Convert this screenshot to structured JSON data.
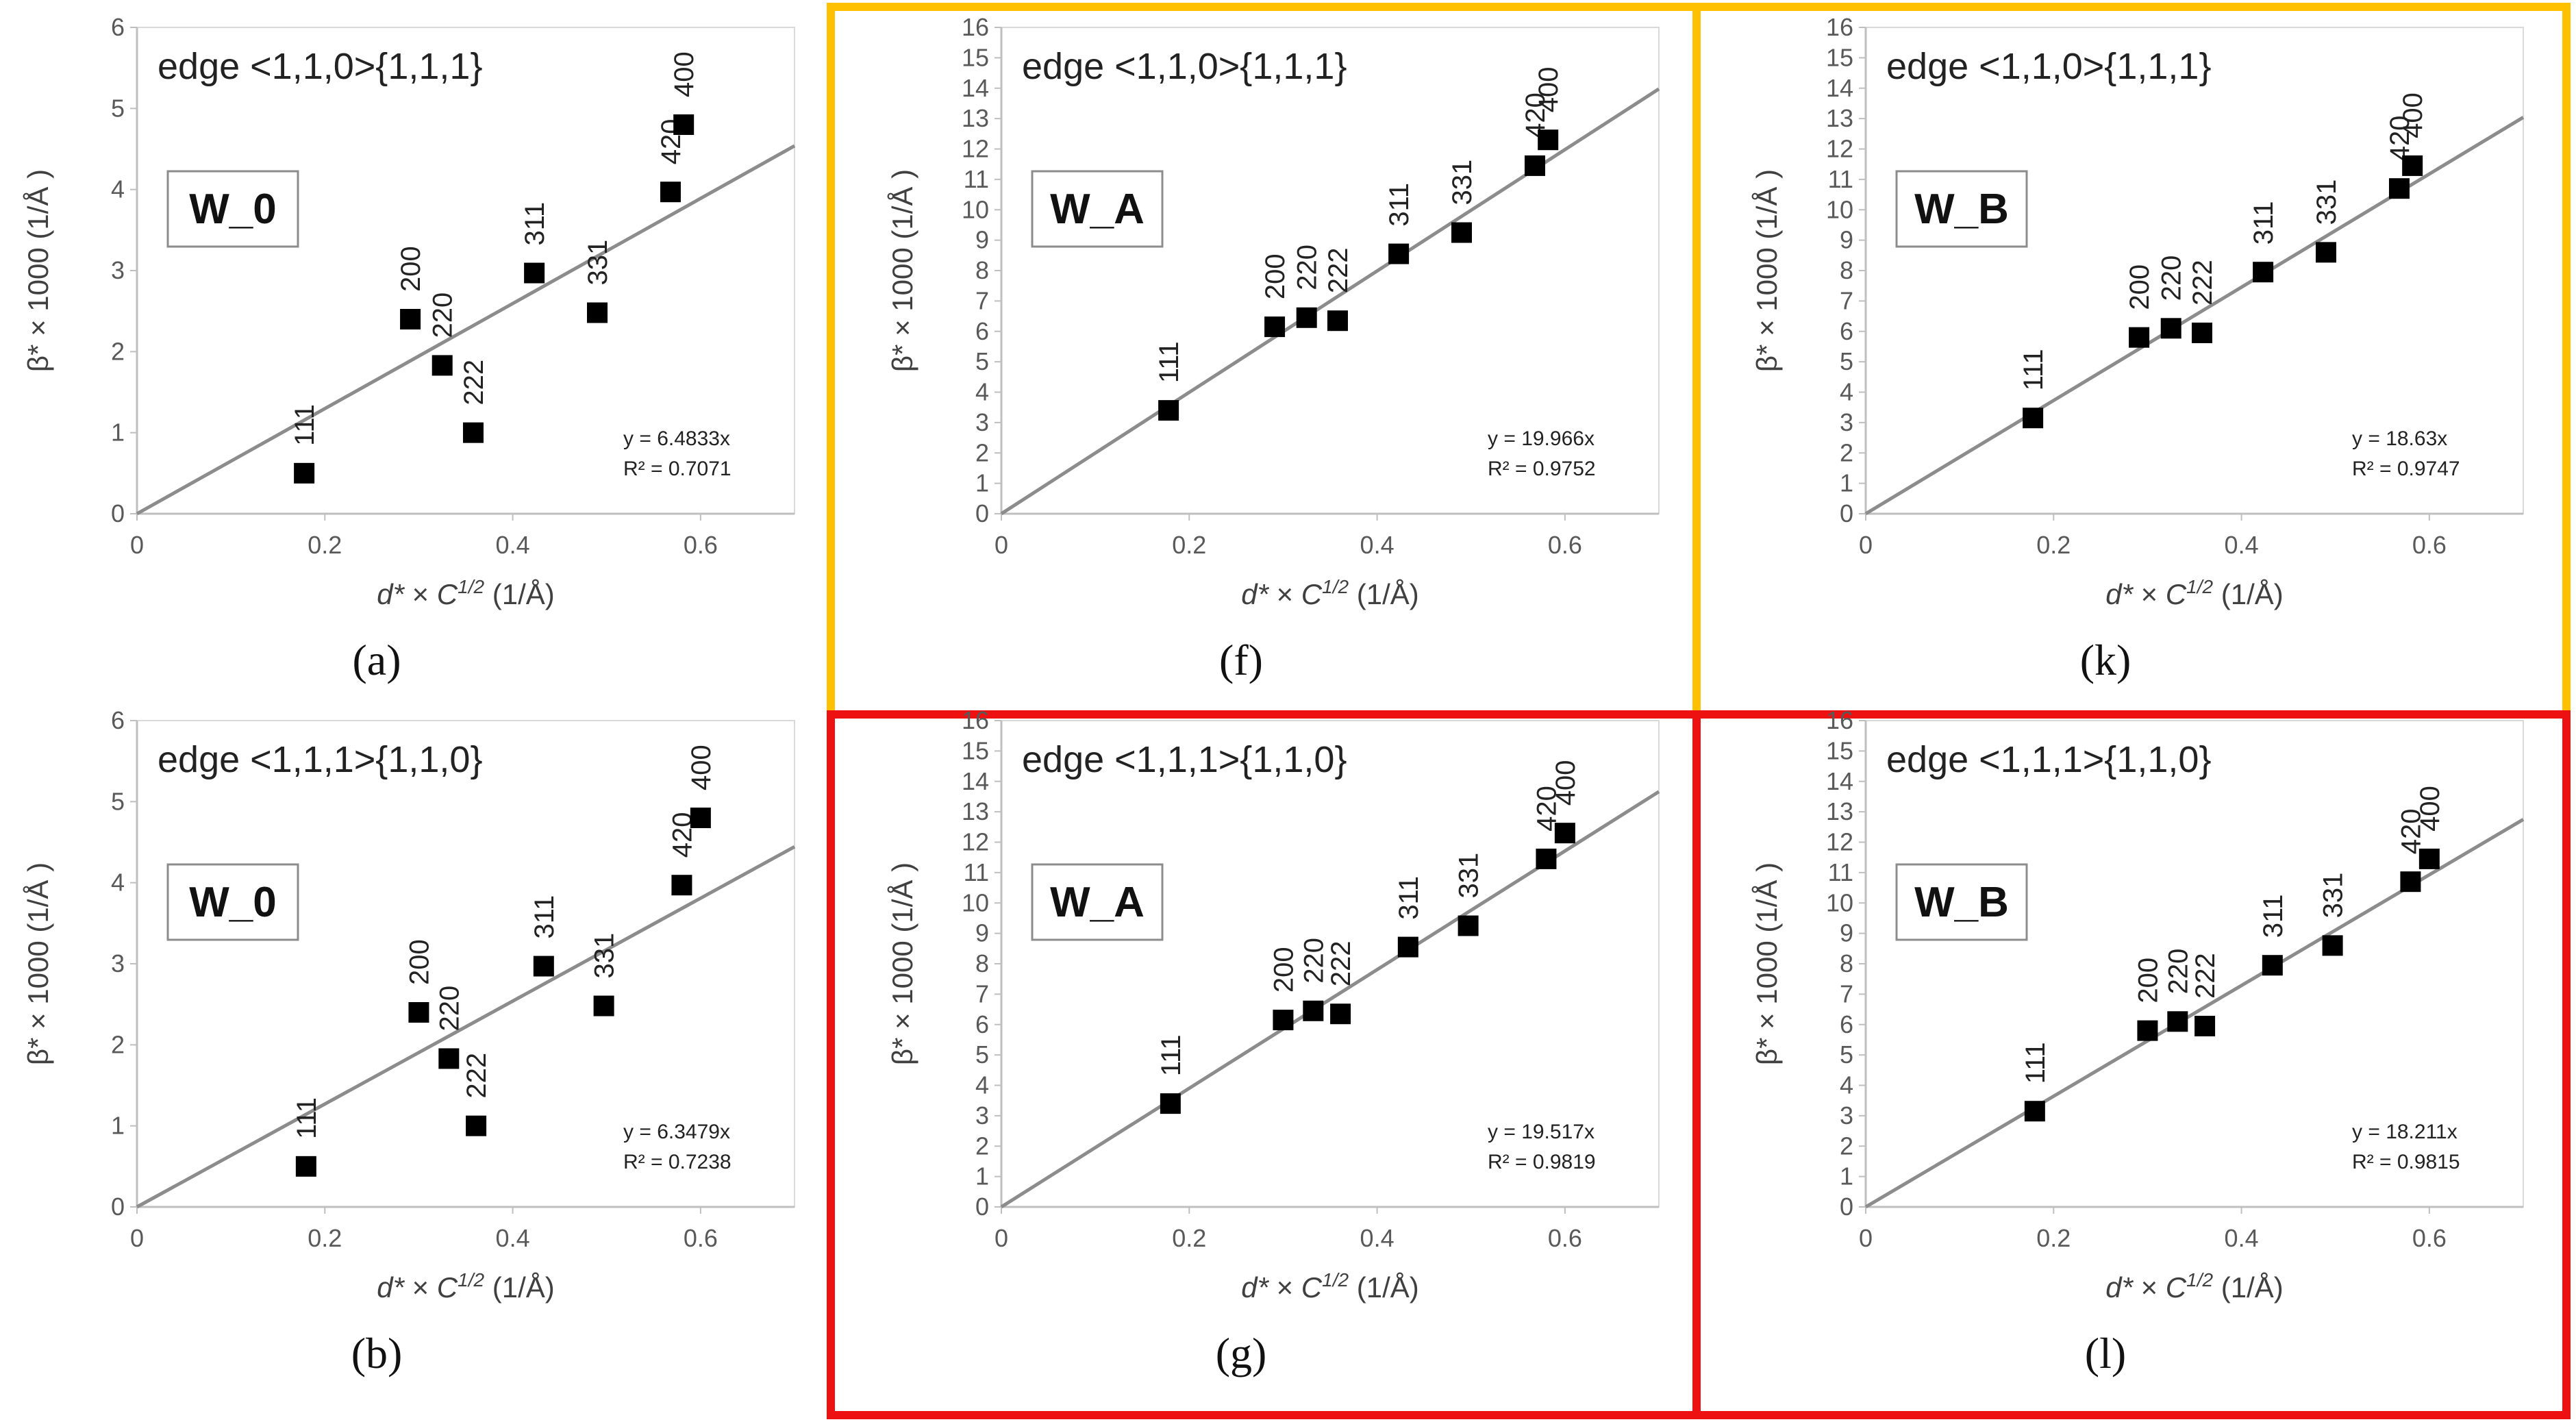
{
  "axis_common": {
    "xlabel_parts": [
      "d*",
      " × ",
      "C",
      "1/2",
      "    (1/Å)"
    ],
    "ylabel": "β* × 1000   (1/Å )"
  },
  "frame_colors": {
    "orange": "#FFC000",
    "red": "#EE1111"
  },
  "chart_data": [
    {
      "type": "scatter",
      "caption": "(a)",
      "title": "edge <1,1,0>{1,1,1}",
      "sample": "W_0",
      "eq_line1": "y = 6.4833x",
      "eq_line2": "R² = 0.7071",
      "slope": 6.4833,
      "xlim": [
        0,
        0.7
      ],
      "ylim": [
        0,
        6
      ],
      "xticks": [
        0,
        0.2,
        0.4,
        0.6
      ],
      "xtick_labels": [
        "0",
        "0.2",
        "0.4",
        "0.6"
      ],
      "yticks": [
        0,
        1,
        2,
        3,
        4,
        5,
        6
      ],
      "points": [
        {
          "label": "111",
          "x": 0.178,
          "y": 0.5
        },
        {
          "label": "200",
          "x": 0.291,
          "y": 2.4
        },
        {
          "label": "220",
          "x": 0.325,
          "y": 1.83
        },
        {
          "label": "222",
          "x": 0.358,
          "y": 1.0
        },
        {
          "label": "311",
          "x": 0.423,
          "y": 2.97
        },
        {
          "label": "331",
          "x": 0.49,
          "y": 2.48
        },
        {
          "label": "420",
          "x": 0.568,
          "y": 3.97
        },
        {
          "label": "400",
          "x": 0.582,
          "y": 4.8
        }
      ]
    },
    {
      "type": "scatter",
      "caption": "(b)",
      "title": "edge <1,1,1>{1,1,0}",
      "sample": "W_0",
      "eq_line1": "y = 6.3479x",
      "eq_line2": "R² = 0.7238",
      "slope": 6.3479,
      "xlim": [
        0,
        0.7
      ],
      "ylim": [
        0,
        6
      ],
      "xticks": [
        0,
        0.2,
        0.4,
        0.6
      ],
      "xtick_labels": [
        "0",
        "0.2",
        "0.4",
        "0.6"
      ],
      "yticks": [
        0,
        1,
        2,
        3,
        4,
        5,
        6
      ],
      "points": [
        {
          "label": "111",
          "x": 0.18,
          "y": 0.5
        },
        {
          "label": "200",
          "x": 0.3,
          "y": 2.4
        },
        {
          "label": "220",
          "x": 0.332,
          "y": 1.83
        },
        {
          "label": "222",
          "x": 0.361,
          "y": 1.0
        },
        {
          "label": "311",
          "x": 0.433,
          "y": 2.97
        },
        {
          "label": "331",
          "x": 0.497,
          "y": 2.48
        },
        {
          "label": "420",
          "x": 0.58,
          "y": 3.97
        },
        {
          "label": "400",
          "x": 0.6,
          "y": 4.8
        }
      ]
    },
    {
      "type": "scatter",
      "caption": "(f)",
      "title": "edge <1,1,0>{1,1,1}",
      "sample": "W_A",
      "eq_line1": "y = 19.966x",
      "eq_line2": "R² = 0.9752",
      "slope": 19.966,
      "xlim": [
        0,
        0.7
      ],
      "ylim": [
        0,
        16
      ],
      "xticks": [
        0,
        0.2,
        0.4,
        0.6
      ],
      "xtick_labels": [
        "0",
        "0.2",
        "0.4",
        "0.6"
      ],
      "yticks": [
        0,
        1,
        2,
        3,
        4,
        5,
        6,
        7,
        8,
        9,
        10,
        11,
        12,
        13,
        14,
        15,
        16
      ],
      "points": [
        {
          "label": "111",
          "x": 0.178,
          "y": 3.4
        },
        {
          "label": "200",
          "x": 0.291,
          "y": 6.15
        },
        {
          "label": "220",
          "x": 0.325,
          "y": 6.45
        },
        {
          "label": "222",
          "x": 0.358,
          "y": 6.35
        },
        {
          "label": "311",
          "x": 0.423,
          "y": 8.55
        },
        {
          "label": "331",
          "x": 0.49,
          "y": 9.25
        },
        {
          "label": "420",
          "x": 0.568,
          "y": 11.45
        },
        {
          "label": "400",
          "x": 0.582,
          "y": 12.3
        }
      ]
    },
    {
      "type": "scatter",
      "caption": "(g)",
      "title": "edge <1,1,1>{1,1,0}",
      "sample": "W_A",
      "eq_line1": "y = 19.517x",
      "eq_line2": "R² = 0.9819",
      "slope": 19.517,
      "xlim": [
        0,
        0.7
      ],
      "ylim": [
        0,
        16
      ],
      "xticks": [
        0,
        0.2,
        0.4,
        0.6
      ],
      "xtick_labels": [
        "0",
        "0.2",
        "0.4",
        "0.6"
      ],
      "yticks": [
        0,
        1,
        2,
        3,
        4,
        5,
        6,
        7,
        8,
        9,
        10,
        11,
        12,
        13,
        14,
        15,
        16
      ],
      "points": [
        {
          "label": "111",
          "x": 0.18,
          "y": 3.4
        },
        {
          "label": "200",
          "x": 0.3,
          "y": 6.15
        },
        {
          "label": "220",
          "x": 0.332,
          "y": 6.45
        },
        {
          "label": "222",
          "x": 0.361,
          "y": 6.35
        },
        {
          "label": "311",
          "x": 0.433,
          "y": 8.55
        },
        {
          "label": "331",
          "x": 0.497,
          "y": 9.25
        },
        {
          "label": "420",
          "x": 0.58,
          "y": 11.45
        },
        {
          "label": "400",
          "x": 0.6,
          "y": 12.3
        }
      ]
    },
    {
      "type": "scatter",
      "caption": "(k)",
      "title": "edge <1,1,0>{1,1,1}",
      "sample": "W_B",
      "eq_line1": "y = 18.63x",
      "eq_line2": "R² = 0.9747",
      "slope": 18.63,
      "xlim": [
        0,
        0.7
      ],
      "ylim": [
        0,
        16
      ],
      "xticks": [
        0,
        0.2,
        0.4,
        0.6
      ],
      "xtick_labels": [
        "0",
        "0.2",
        "0.4",
        "0.6"
      ],
      "yticks": [
        0,
        1,
        2,
        3,
        4,
        5,
        6,
        7,
        8,
        9,
        10,
        11,
        12,
        13,
        14,
        15,
        16
      ],
      "points": [
        {
          "label": "111",
          "x": 0.178,
          "y": 3.15
        },
        {
          "label": "200",
          "x": 0.291,
          "y": 5.8
        },
        {
          "label": "220",
          "x": 0.325,
          "y": 6.1
        },
        {
          "label": "222",
          "x": 0.358,
          "y": 5.95
        },
        {
          "label": "311",
          "x": 0.423,
          "y": 7.95
        },
        {
          "label": "331",
          "x": 0.49,
          "y": 8.6
        },
        {
          "label": "420",
          "x": 0.568,
          "y": 10.7
        },
        {
          "label": "400",
          "x": 0.582,
          "y": 11.45
        }
      ]
    },
    {
      "type": "scatter",
      "caption": "(l)",
      "title": "edge <1,1,1>{1,1,0}",
      "sample": "W_B",
      "eq_line1": "y = 18.211x",
      "eq_line2": "R² = 0.9815",
      "slope": 18.211,
      "xlim": [
        0,
        0.7
      ],
      "ylim": [
        0,
        16
      ],
      "xticks": [
        0,
        0.2,
        0.4,
        0.6
      ],
      "xtick_labels": [
        "0",
        "0.2",
        "0.4",
        "0.6"
      ],
      "yticks": [
        0,
        1,
        2,
        3,
        4,
        5,
        6,
        7,
        8,
        9,
        10,
        11,
        12,
        13,
        14,
        15,
        16
      ],
      "points": [
        {
          "label": "111",
          "x": 0.18,
          "y": 3.15
        },
        {
          "label": "200",
          "x": 0.3,
          "y": 5.8
        },
        {
          "label": "220",
          "x": 0.332,
          "y": 6.1
        },
        {
          "label": "222",
          "x": 0.361,
          "y": 5.95
        },
        {
          "label": "311",
          "x": 0.433,
          "y": 7.95
        },
        {
          "label": "331",
          "x": 0.497,
          "y": 8.6
        },
        {
          "label": "420",
          "x": 0.58,
          "y": 10.7
        },
        {
          "label": "400",
          "x": 0.6,
          "y": 11.45
        }
      ]
    }
  ]
}
